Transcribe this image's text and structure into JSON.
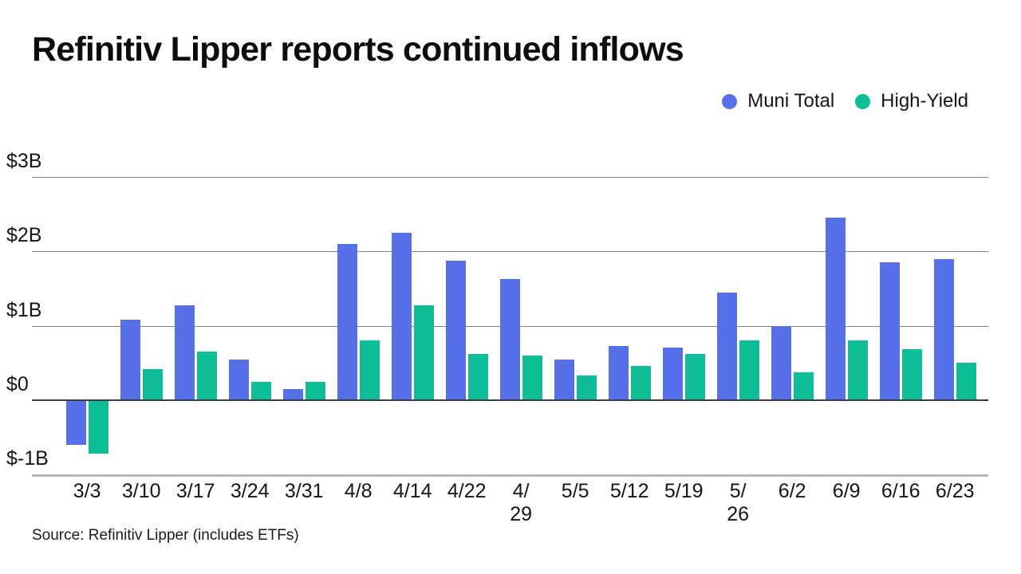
{
  "chart_data": {
    "type": "bar",
    "title": "Refinitiv Lipper reports continued inflows",
    "categories": [
      "3/3",
      "3/10",
      "3/17",
      "3/24",
      "3/31",
      "4/8",
      "4/14",
      "4/22",
      "4/29",
      "5/5",
      "5/12",
      "5/19",
      "5/26",
      "6/2",
      "6/9",
      "6/16",
      "6/23"
    ],
    "series": [
      {
        "name": "Muni Total",
        "color": "#5570E8",
        "values": [
          -0.6,
          1.08,
          1.27,
          0.55,
          0.15,
          2.1,
          2.25,
          1.87,
          1.63,
          0.55,
          0.73,
          0.71,
          1.45,
          1.0,
          2.45,
          1.85,
          1.9
        ]
      },
      {
        "name": "High-Yield",
        "color": "#0DBE96",
        "values": [
          -0.72,
          0.42,
          0.65,
          0.25,
          0.25,
          0.8,
          1.27,
          0.62,
          0.6,
          0.33,
          0.46,
          0.62,
          0.8,
          0.37,
          0.8,
          0.68,
          0.5
        ]
      }
    ],
    "units": "billions USD per week",
    "y_ticks": [
      "$3B",
      "$2B",
      "$1B",
      "$0",
      "$-1B"
    ],
    "ylim": [
      -1,
      3
    ],
    "grid": true,
    "legend_position": "top-right",
    "wrapped_ticks": [
      "4/29",
      "5/26"
    ],
    "source_note": "Source: Refinitiv Lipper (includes ETFs)"
  }
}
